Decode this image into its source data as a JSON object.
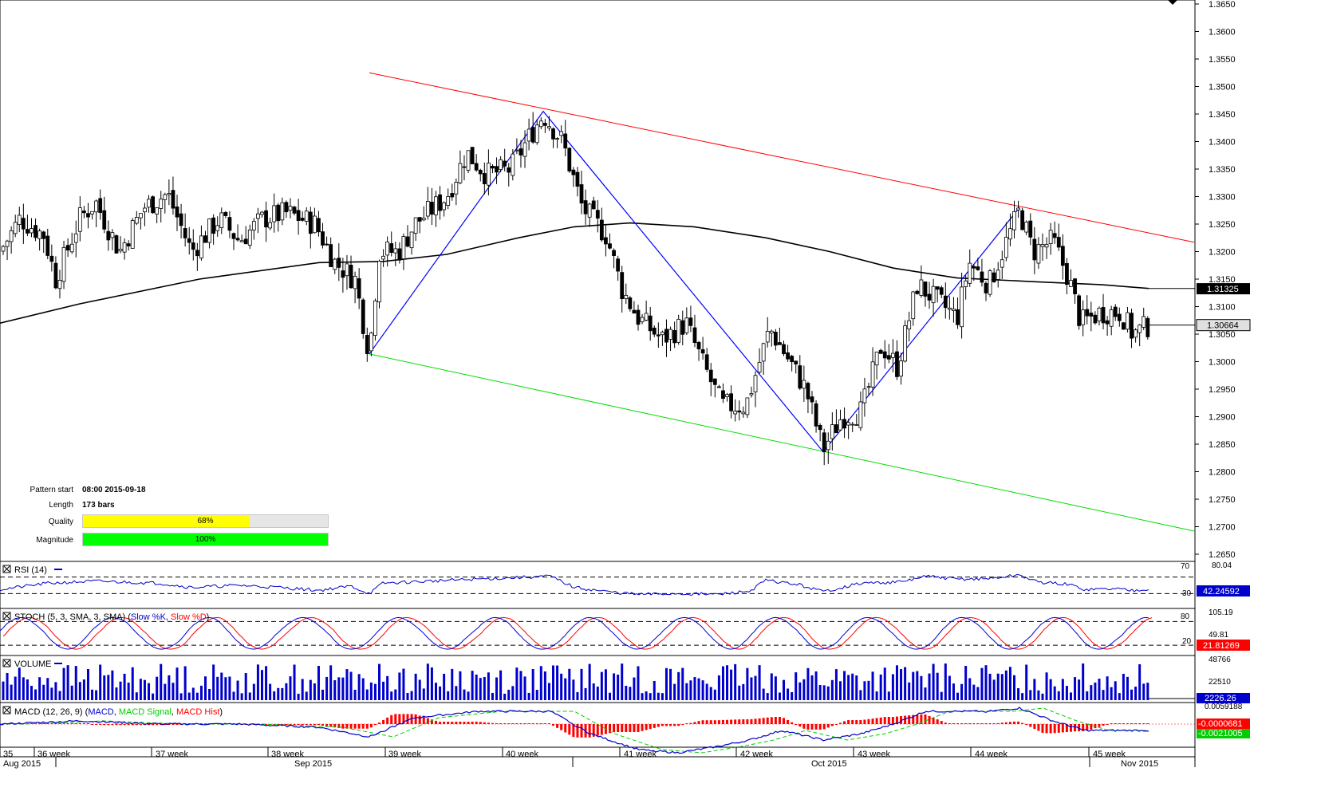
{
  "chart_data": {
    "type": "candlestick",
    "price_axis": {
      "ticks": [
        "1.3650",
        "1.3600",
        "1.3550",
        "1.3500",
        "1.3450",
        "1.3400",
        "1.3350",
        "1.3300",
        "1.3250",
        "1.3200",
        "1.3150",
        "1.3100",
        "1.3050",
        "1.3000",
        "1.2950",
        "1.2900",
        "1.2850",
        "1.2800",
        "1.2750",
        "1.2700",
        "1.2650"
      ],
      "range": [
        1.2637,
        1.3655
      ],
      "current_price_label": "1.30664",
      "ma_label": "1.31325"
    },
    "week_labels": [
      "35",
      "36 week",
      "37 week",
      "38 week",
      "39 week",
      "40 week",
      "41 week",
      "42 week",
      "43 week",
      "44 week",
      "45 week"
    ],
    "month_labels": [
      "Aug 2015",
      "Sep 2015",
      "Oct 2015",
      "Nov 2015"
    ],
    "pattern": {
      "start_label": "Pattern start",
      "start_value": "08:00 2015-09-18",
      "length_label": "Length",
      "length_value": "173 bars",
      "quality_label": "Quality",
      "quality_value": "68%",
      "quality_pct": 68,
      "magnitude_label": "Magnitude",
      "magnitude_value": "100%",
      "magnitude_pct": 100,
      "zigzag": [
        [
          463,
          1.3014
        ],
        [
          681,
          1.3455
        ],
        [
          1032,
          1.2836
        ],
        [
          1278,
          1.328
        ]
      ],
      "upper_line": [
        [
          463,
          1.3525
        ],
        [
          1497,
          1.3217
        ]
      ],
      "lower_line": [
        [
          463,
          1.3014
        ],
        [
          1497,
          1.2692
        ]
      ]
    },
    "ma200": {
      "color": "#000000",
      "points": [
        [
          0,
          1.307
        ],
        [
          100,
          1.3105
        ],
        [
          250,
          1.315
        ],
        [
          400,
          1.318
        ],
        [
          480,
          1.3182
        ],
        [
          560,
          1.3195
        ],
        [
          650,
          1.3225
        ],
        [
          720,
          1.3245
        ],
        [
          790,
          1.3252
        ],
        [
          870,
          1.3245
        ],
        [
          960,
          1.3225
        ],
        [
          1040,
          1.32
        ],
        [
          1120,
          1.317
        ],
        [
          1200,
          1.3152
        ],
        [
          1300,
          1.3145
        ],
        [
          1380,
          1.314
        ],
        [
          1440,
          1.3133
        ]
      ]
    },
    "candles_anchor": [
      [
        0,
        1.32
      ],
      [
        25,
        1.326
      ],
      [
        55,
        1.323
      ],
      [
        70,
        1.315
      ],
      [
        100,
        1.326
      ],
      [
        120,
        1.329
      ],
      [
        150,
        1.32
      ],
      [
        180,
        1.328
      ],
      [
        210,
        1.3305
      ],
      [
        240,
        1.32
      ],
      [
        275,
        1.326
      ],
      [
        300,
        1.322
      ],
      [
        330,
        1.326
      ],
      [
        360,
        1.327
      ],
      [
        395,
        1.325
      ],
      [
        420,
        1.318
      ],
      [
        445,
        1.315
      ],
      [
        463,
        1.3014
      ],
      [
        475,
        1.32
      ],
      [
        500,
        1.32
      ],
      [
        520,
        1.325
      ],
      [
        560,
        1.33
      ],
      [
        585,
        1.338
      ],
      [
        610,
        1.334
      ],
      [
        640,
        1.335
      ],
      [
        660,
        1.34
      ],
      [
        681,
        1.345
      ],
      [
        705,
        1.34
      ],
      [
        730,
        1.328
      ],
      [
        760,
        1.323
      ],
      [
        780,
        1.313
      ],
      [
        800,
        1.308
      ],
      [
        830,
        1.304
      ],
      [
        860,
        1.307
      ],
      [
        880,
        1.3
      ],
      [
        905,
        1.292
      ],
      [
        935,
        1.292
      ],
      [
        965,
        1.306
      ],
      [
        990,
        1.3
      ],
      [
        1010,
        1.295
      ],
      [
        1032,
        1.284
      ],
      [
        1055,
        1.29
      ],
      [
        1080,
        1.291
      ],
      [
        1105,
        1.303
      ],
      [
        1125,
        1.299
      ],
      [
        1150,
        1.314
      ],
      [
        1175,
        1.311
      ],
      [
        1200,
        1.308
      ],
      [
        1215,
        1.318
      ],
      [
        1240,
        1.314
      ],
      [
        1265,
        1.323
      ],
      [
        1278,
        1.3275
      ],
      [
        1295,
        1.32
      ],
      [
        1320,
        1.322
      ],
      [
        1340,
        1.315
      ],
      [
        1355,
        1.307
      ],
      [
        1380,
        1.309
      ],
      [
        1405,
        1.309
      ],
      [
        1420,
        1.305
      ],
      [
        1440,
        1.3066
      ]
    ],
    "rsi": {
      "label": "RSI (14)",
      "value_label": "42.24592",
      "top_label": "80.04",
      "level_high": "70",
      "level_low": "30",
      "color": "#0000cc",
      "anchor": [
        [
          0,
          40
        ],
        [
          60,
          55
        ],
        [
          120,
          60
        ],
        [
          200,
          55
        ],
        [
          240,
          45
        ],
        [
          300,
          50
        ],
        [
          350,
          45
        ],
        [
          400,
          38
        ],
        [
          440,
          48
        ],
        [
          463,
          30
        ],
        [
          480,
          55
        ],
        [
          560,
          62
        ],
        [
          640,
          68
        ],
        [
          690,
          72
        ],
        [
          720,
          45
        ],
        [
          760,
          35
        ],
        [
          800,
          28
        ],
        [
          850,
          30
        ],
        [
          900,
          28
        ],
        [
          940,
          36
        ],
        [
          960,
          62
        ],
        [
          1000,
          52
        ],
        [
          1032,
          35
        ],
        [
          1080,
          55
        ],
        [
          1130,
          58
        ],
        [
          1160,
          72
        ],
        [
          1200,
          65
        ],
        [
          1240,
          66
        ],
        [
          1278,
          75
        ],
        [
          1300,
          58
        ],
        [
          1340,
          52
        ],
        [
          1360,
          40
        ],
        [
          1400,
          42
        ],
        [
          1420,
          38
        ],
        [
          1440,
          42
        ]
      ]
    },
    "stoch": {
      "label": "STOCH (5, 3, SMA, 3, SMA)",
      "k_label": "Slow %K",
      "d_label": "Slow %D",
      "value_label": "21.81269",
      "mid_label": "49.81",
      "top_label": "105.19",
      "level_high": "80",
      "level_low": "20"
    },
    "volume": {
      "label": "VOLUME",
      "value_label": "2226.26",
      "tick_high": "48766",
      "tick_mid": "22510",
      "color": "#0000cc"
    },
    "macd": {
      "label": "MACD (12, 26, 9)",
      "macd_label": "MACD",
      "signal_label": "MACD Signal",
      "hist_label": "MACD Hist",
      "value_label": "-0.0000681",
      "signal_value_label": "-0.0021005",
      "top_label": "0.0059188",
      "macd_color": "#0000cc",
      "signal_color": "#00cc00",
      "hist_color": "#ff0000",
      "anchor": [
        [
          0,
          0.0
        ],
        [
          100,
          0.001
        ],
        [
          200,
          0.0
        ],
        [
          300,
          0.0
        ],
        [
          400,
          -0.001
        ],
        [
          463,
          -0.004
        ],
        [
          520,
          0.002
        ],
        [
          600,
          0.004
        ],
        [
          690,
          0.004
        ],
        [
          740,
          -0.003
        ],
        [
          800,
          -0.008
        ],
        [
          850,
          -0.009
        ],
        [
          900,
          -0.007
        ],
        [
          940,
          -0.005
        ],
        [
          980,
          -0.002
        ],
        [
          1032,
          -0.005
        ],
        [
          1080,
          -0.003
        ],
        [
          1120,
          0.0
        ],
        [
          1160,
          0.004
        ],
        [
          1240,
          0.004
        ],
        [
          1278,
          0.005
        ],
        [
          1320,
          0.001
        ],
        [
          1360,
          -0.002
        ],
        [
          1440,
          -0.002
        ]
      ]
    }
  }
}
